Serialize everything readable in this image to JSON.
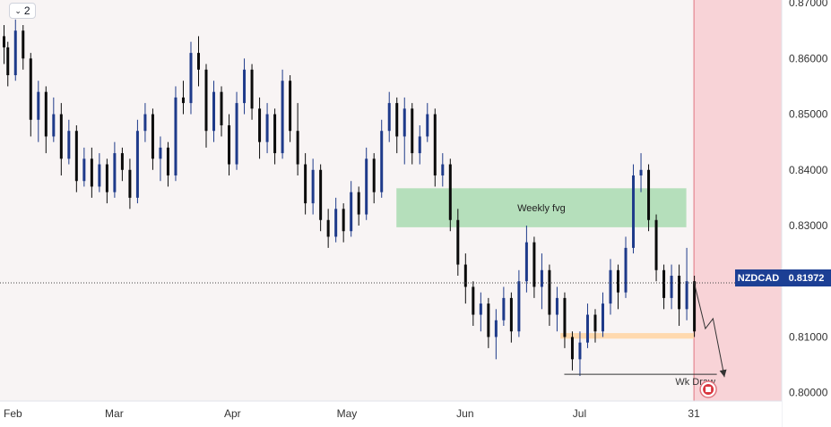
{
  "toolbar": {
    "collapse_count": "2"
  },
  "symbol": "NZDCAD",
  "last_price_label": "0.81972",
  "colors": {
    "up_candle": "#1e3a8a",
    "down_candle": "#0b0b0b",
    "fvg_fill": "#a9dbb0",
    "demand_fill": "#ffd6a6",
    "projection_bg": "#f8d3d7",
    "chart_bg": "#f8f4f4",
    "cursor_line": "#e0767f",
    "symbol_badge": "#1c3f94"
  },
  "chart_data": {
    "type": "candlestick",
    "instrument": "NZDCAD",
    "y_axis": {
      "ticks": [
        "0.80000",
        "0.81000",
        "0.82000",
        "0.83000",
        "0.84000",
        "0.85000",
        "0.86000",
        "0.87000"
      ],
      "ylim": [
        0.7985,
        0.8705
      ]
    },
    "x_axis": {
      "ticks": [
        "Feb",
        "Mar",
        "Apr",
        "May",
        "Jun",
        "Jul",
        "31"
      ],
      "dates": [
        "2024-02-01",
        "2024-03-01",
        "2024-04-01",
        "2024-05-01",
        "2024-06-01",
        "2024-07-01",
        "2024-07-31"
      ],
      "xlim": [
        "2024-02-01",
        "2024-08-31"
      ]
    },
    "last_price": 0.81972,
    "fvg_zone": {
      "label": "Weekly fvg",
      "low": 0.8297,
      "high": 0.8367,
      "start": "2024-05-14",
      "end": "2024-07-29"
    },
    "demand_zone": {
      "low": 0.8097,
      "high": 0.8107,
      "start": "2024-06-26",
      "end": "2024-07-31"
    },
    "weekly_draw": {
      "label": "Wk Draw",
      "level": 0.8033,
      "start": "2024-06-27",
      "end": "2024-08-06"
    },
    "projection": [
      {
        "date": "2024-07-31",
        "price": 0.8199
      },
      {
        "date": "2024-08-03",
        "price": 0.8115
      },
      {
        "date": "2024-08-05",
        "price": 0.8133
      },
      {
        "date": "2024-08-08",
        "price": 0.8028
      }
    ],
    "candles_ohlc": [
      [
        0.864,
        0.866,
        0.859,
        0.862
      ],
      [
        0.862,
        0.863,
        0.855,
        0.857
      ],
      [
        0.857,
        0.867,
        0.856,
        0.865
      ],
      [
        0.865,
        0.866,
        0.858,
        0.86
      ],
      [
        0.86,
        0.861,
        0.846,
        0.849
      ],
      [
        0.849,
        0.856,
        0.845,
        0.854
      ],
      [
        0.854,
        0.855,
        0.843,
        0.846
      ],
      [
        0.846,
        0.853,
        0.845,
        0.85
      ],
      [
        0.85,
        0.852,
        0.839,
        0.842
      ],
      [
        0.842,
        0.849,
        0.841,
        0.847
      ],
      [
        0.847,
        0.848,
        0.836,
        0.838
      ],
      [
        0.838,
        0.844,
        0.837,
        0.842
      ],
      [
        0.842,
        0.844,
        0.835,
        0.837
      ],
      [
        0.837,
        0.843,
        0.836,
        0.841
      ],
      [
        0.841,
        0.842,
        0.834,
        0.836
      ],
      [
        0.836,
        0.845,
        0.835,
        0.843
      ],
      [
        0.843,
        0.844,
        0.838,
        0.84
      ],
      [
        0.84,
        0.842,
        0.833,
        0.835
      ],
      [
        0.835,
        0.849,
        0.834,
        0.847
      ],
      [
        0.847,
        0.852,
        0.845,
        0.85
      ],
      [
        0.85,
        0.851,
        0.84,
        0.842
      ],
      [
        0.842,
        0.846,
        0.838,
        0.844
      ],
      [
        0.844,
        0.845,
        0.837,
        0.839
      ],
      [
        0.839,
        0.855,
        0.838,
        0.853
      ],
      [
        0.853,
        0.856,
        0.85,
        0.852
      ],
      [
        0.852,
        0.863,
        0.85,
        0.861
      ],
      [
        0.861,
        0.864,
        0.855,
        0.858
      ],
      [
        0.858,
        0.859,
        0.844,
        0.847
      ],
      [
        0.847,
        0.856,
        0.845,
        0.854
      ],
      [
        0.854,
        0.855,
        0.846,
        0.848
      ],
      [
        0.848,
        0.85,
        0.839,
        0.841
      ],
      [
        0.841,
        0.854,
        0.84,
        0.852
      ],
      [
        0.852,
        0.86,
        0.85,
        0.858
      ],
      [
        0.858,
        0.859,
        0.849,
        0.851
      ],
      [
        0.851,
        0.853,
        0.842,
        0.845
      ],
      [
        0.845,
        0.852,
        0.843,
        0.85
      ],
      [
        0.85,
        0.851,
        0.841,
        0.843
      ],
      [
        0.843,
        0.858,
        0.842,
        0.856
      ],
      [
        0.856,
        0.857,
        0.845,
        0.847
      ],
      [
        0.847,
        0.852,
        0.839,
        0.841
      ],
      [
        0.841,
        0.843,
        0.832,
        0.834
      ],
      [
        0.834,
        0.842,
        0.832,
        0.84
      ],
      [
        0.84,
        0.841,
        0.829,
        0.831
      ],
      [
        0.831,
        0.833,
        0.826,
        0.828
      ],
      [
        0.828,
        0.835,
        0.827,
        0.833
      ],
      [
        0.833,
        0.834,
        0.827,
        0.829
      ],
      [
        0.829,
        0.838,
        0.828,
        0.836
      ],
      [
        0.836,
        0.837,
        0.83,
        0.832
      ],
      [
        0.832,
        0.844,
        0.831,
        0.842
      ],
      [
        0.842,
        0.843,
        0.834,
        0.836
      ],
      [
        0.836,
        0.849,
        0.835,
        0.847
      ],
      [
        0.847,
        0.854,
        0.845,
        0.852
      ],
      [
        0.852,
        0.853,
        0.843,
        0.846
      ],
      [
        0.846,
        0.853,
        0.841,
        0.851
      ],
      [
        0.851,
        0.852,
        0.841,
        0.843
      ],
      [
        0.843,
        0.848,
        0.841,
        0.846
      ],
      [
        0.846,
        0.852,
        0.845,
        0.85
      ],
      [
        0.85,
        0.851,
        0.837,
        0.839
      ],
      [
        0.839,
        0.843,
        0.837,
        0.841
      ],
      [
        0.841,
        0.842,
        0.829,
        0.831
      ],
      [
        0.831,
        0.833,
        0.821,
        0.823
      ],
      [
        0.823,
        0.825,
        0.816,
        0.819
      ],
      [
        0.819,
        0.82,
        0.812,
        0.814
      ],
      [
        0.814,
        0.818,
        0.811,
        0.816
      ],
      [
        0.816,
        0.817,
        0.808,
        0.81
      ],
      [
        0.81,
        0.815,
        0.806,
        0.813
      ],
      [
        0.813,
        0.819,
        0.812,
        0.817
      ],
      [
        0.817,
        0.818,
        0.809,
        0.811
      ],
      [
        0.811,
        0.822,
        0.81,
        0.82
      ],
      [
        0.82,
        0.83,
        0.818,
        0.827
      ],
      [
        0.827,
        0.828,
        0.817,
        0.819
      ],
      [
        0.819,
        0.825,
        0.815,
        0.822
      ],
      [
        0.822,
        0.823,
        0.812,
        0.814
      ],
      [
        0.814,
        0.819,
        0.811,
        0.817
      ],
      [
        0.817,
        0.818,
        0.808,
        0.81
      ],
      [
        0.81,
        0.811,
        0.804,
        0.806
      ],
      [
        0.806,
        0.811,
        0.803,
        0.809
      ],
      [
        0.809,
        0.816,
        0.808,
        0.814
      ],
      [
        0.814,
        0.815,
        0.809,
        0.811
      ],
      [
        0.811,
        0.818,
        0.81,
        0.816
      ],
      [
        0.816,
        0.824,
        0.814,
        0.822
      ],
      [
        0.822,
        0.823,
        0.815,
        0.818
      ],
      [
        0.818,
        0.828,
        0.817,
        0.826
      ],
      [
        0.826,
        0.841,
        0.825,
        0.839
      ],
      [
        0.839,
        0.843,
        0.836,
        0.84
      ],
      [
        0.84,
        0.841,
        0.829,
        0.831
      ],
      [
        0.831,
        0.832,
        0.82,
        0.822
      ],
      [
        0.822,
        0.823,
        0.815,
        0.817
      ],
      [
        0.817,
        0.823,
        0.815,
        0.821
      ],
      [
        0.821,
        0.823,
        0.812,
        0.815
      ],
      [
        0.815,
        0.826,
        0.813,
        0.82
      ],
      [
        0.82,
        0.821,
        0.81,
        0.811
      ]
    ]
  }
}
